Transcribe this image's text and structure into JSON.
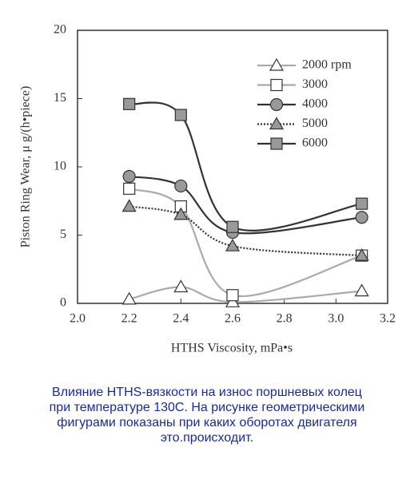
{
  "chart_data": {
    "type": "line",
    "x_label": "HTHS Viscosity, mPa•s",
    "y_label": "Piston Ring Wear,  μ g/(h•piece)",
    "x": [
      2.2,
      2.4,
      2.6,
      3.1
    ],
    "series": [
      {
        "name": "2000 rpm",
        "color": "#aaaaaa",
        "marker": "triangle",
        "marker_fill": "#ffffff",
        "line_style": "solid",
        "values": [
          0.3,
          1.2,
          0.1,
          0.9
        ]
      },
      {
        "name": "3000",
        "color": "#aaaaaa",
        "marker": "square",
        "marker_fill": "#ffffff",
        "line_style": "solid",
        "values": [
          8.4,
          7.1,
          0.6,
          3.5
        ]
      },
      {
        "name": "4000",
        "color": "#333333",
        "marker": "circle",
        "marker_fill": "#999999",
        "line_style": "solid",
        "values": [
          9.3,
          8.6,
          5.2,
          6.3
        ]
      },
      {
        "name": "5000",
        "color": "#333333",
        "marker": "triangle",
        "marker_fill": "#999999",
        "line_style": "dotted",
        "values": [
          7.1,
          6.5,
          4.2,
          3.5
        ]
      },
      {
        "name": "6000",
        "color": "#333333",
        "marker": "square",
        "marker_fill": "#999999",
        "line_style": "solid",
        "values": [
          14.6,
          13.8,
          5.6,
          7.3
        ]
      }
    ],
    "xlim": [
      2.0,
      3.2
    ],
    "xticks": [
      {
        "value": 2,
        "label": "2.0"
      },
      2.2,
      2.4,
      2.6,
      2.8,
      {
        "value": 3,
        "label": "3.0"
      },
      3.2
    ],
    "ylim": [
      0,
      20
    ],
    "yticks": [
      0,
      5,
      10,
      15,
      20
    ],
    "grid": false,
    "legend": "upper right",
    "caption": [
      "Влияние HTHS-вязкости на износ поршневых колец",
      "при температуре 130С. На рисунке геометрическими",
      "фигурами показаны при каких оборотах двигателя",
      "это.происходит."
    ]
  }
}
